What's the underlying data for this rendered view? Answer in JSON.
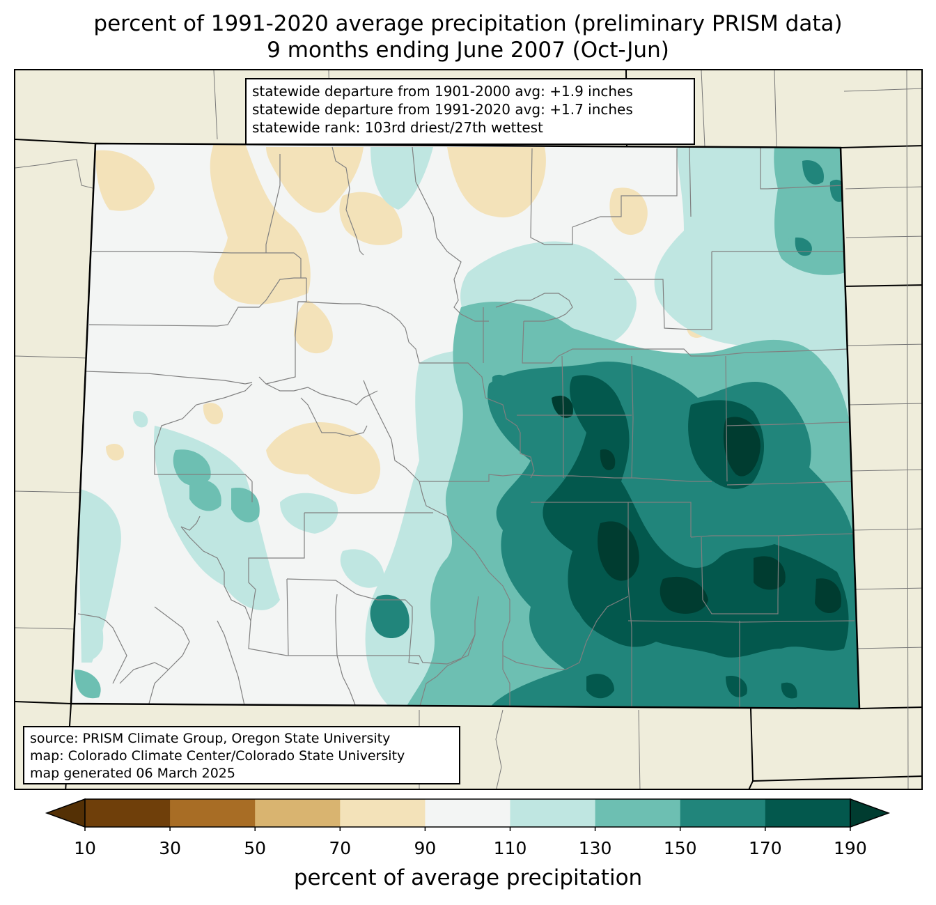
{
  "title": {
    "line1": "percent of 1991-2020 average precipitation (preliminary PRISM data)",
    "line2": "9 months ending June 2007 (Oct-Jun)"
  },
  "stats": {
    "line1": "statewide departure from 1901-2000 avg: +1.9 inches",
    "line2": "statewide departure from 1991-2020 avg: +1.7 inches",
    "line3": "statewide rank: 103rd driest/27th wettest"
  },
  "source": {
    "line1": "source: PRISM Climate Group, Oregon State University",
    "line2": "map: Colorado Climate Center/Colorado State University",
    "line3": "map generated 06 March 2025"
  },
  "colorbar": {
    "label": "percent of average precipitation",
    "ticks": [
      "10",
      "30",
      "50",
      "70",
      "90",
      "110",
      "130",
      "150",
      "170",
      "190"
    ],
    "bins": [
      {
        "range": "<10",
        "color": "#543005"
      },
      {
        "range": "10-30",
        "color": "#6f3f0a"
      },
      {
        "range": "30-50",
        "color": "#a86d25"
      },
      {
        "range": "50-70",
        "color": "#d9b470"
      },
      {
        "range": "70-90",
        "color": "#f3e2b9"
      },
      {
        "range": "90-110",
        "color": "#f3f5f4"
      },
      {
        "range": "110-130",
        "color": "#bfe6e1"
      },
      {
        "range": "130-150",
        "color": "#6dbfb2"
      },
      {
        "range": "150-170",
        "color": "#21857b"
      },
      {
        "range": "170-190",
        "color": "#03584d"
      },
      {
        "range": ">190",
        "color": "#003c30"
      }
    ]
  },
  "colors": {
    "background_land": "#efeddb",
    "state_border": "#000000",
    "county_border": "#808080"
  }
}
